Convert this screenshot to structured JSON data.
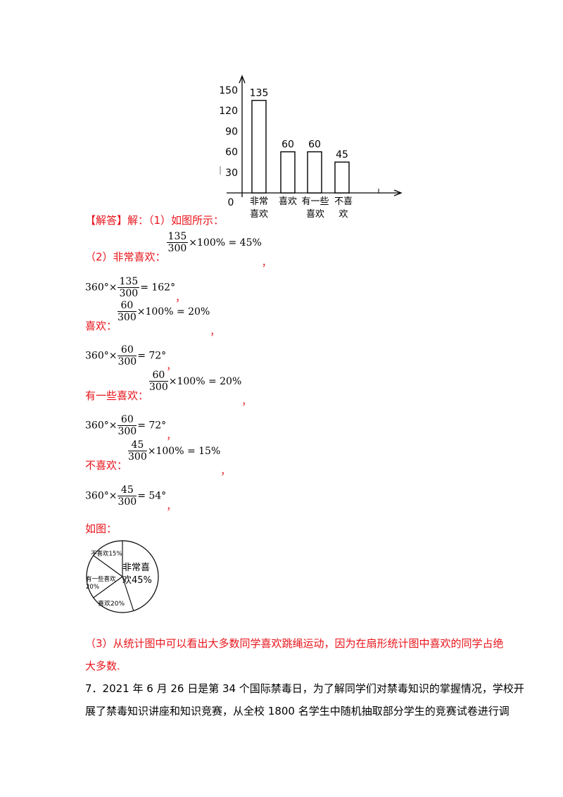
{
  "bar_chart": {
    "chart_data": {
      "type": "bar",
      "categories": [
        "非常\n喜欢",
        "喜欢",
        "有一些\n喜欢",
        "不喜\n欢"
      ],
      "values": [
        135,
        60,
        60,
        45
      ],
      "data_labels": [
        "135",
        "60",
        "60",
        "45"
      ],
      "yticks": [
        "150",
        "120",
        "90",
        "60",
        "30"
      ],
      "origin_label": "0",
      "ylim": [
        0,
        150
      ]
    }
  },
  "answer_label": "【解答】",
  "answer_intro": "解：（1）如图所示：",
  "lines": [
    {
      "prefix": "（2）非常喜欢：",
      "num": "135",
      "den": "300",
      "tail": "×100% = 45%"
    },
    {
      "prefix": "360°×",
      "num": "135",
      "den": "300",
      "tail": "= 162°"
    },
    {
      "prefix": "喜欢：",
      "num": "60",
      "den": "300",
      "tail": "×100% = 20%"
    },
    {
      "prefix": "360°×",
      "num": "60",
      "den": "300",
      "tail": "= 72°"
    },
    {
      "prefix": "有一些喜欢：",
      "num": "60",
      "den": "300",
      "tail": "×100% = 20%"
    },
    {
      "prefix": "360°×",
      "num": "60",
      "den": "300",
      "tail": "= 72°"
    },
    {
      "prefix": "不喜欢：",
      "num": "45",
      "den": "300",
      "tail": "×100% = 15%"
    },
    {
      "prefix": "360°×",
      "num": "45",
      "den": "300",
      "tail": "= 54°"
    }
  ],
  "comma": "，",
  "figure_label": "如图：",
  "pie_chart": {
    "chart_data": {
      "type": "pie",
      "labels": [
        "非常喜欢45%",
        "喜欢20%",
        "有一些喜欢20%",
        "不喜欢15%"
      ],
      "values": [
        45,
        20,
        20,
        15
      ],
      "text": {
        "s1a": "非常喜",
        "s1b": "欢45%",
        "s2": "喜欢20%",
        "s3a": "有一些喜欢",
        "s3b": "20%",
        "s4": "不喜欢15%"
      }
    }
  },
  "conclusion_1": "（3）从统计图中可以看出大多数同学喜欢跳绳运动，因为在扇形统计图中喜欢的同学占绝",
  "conclusion_2": "大多数.",
  "question_1": "7．2021 年 6 月 26 日是第 34 个国际禁毒日，为了解同学们对禁毒知识的掌握情况，学校开",
  "question_2": "展了禁毒知识讲座和知识竞赛，从全校 1800 名学生中随机抽取部分学生的竞赛试卷进行调"
}
